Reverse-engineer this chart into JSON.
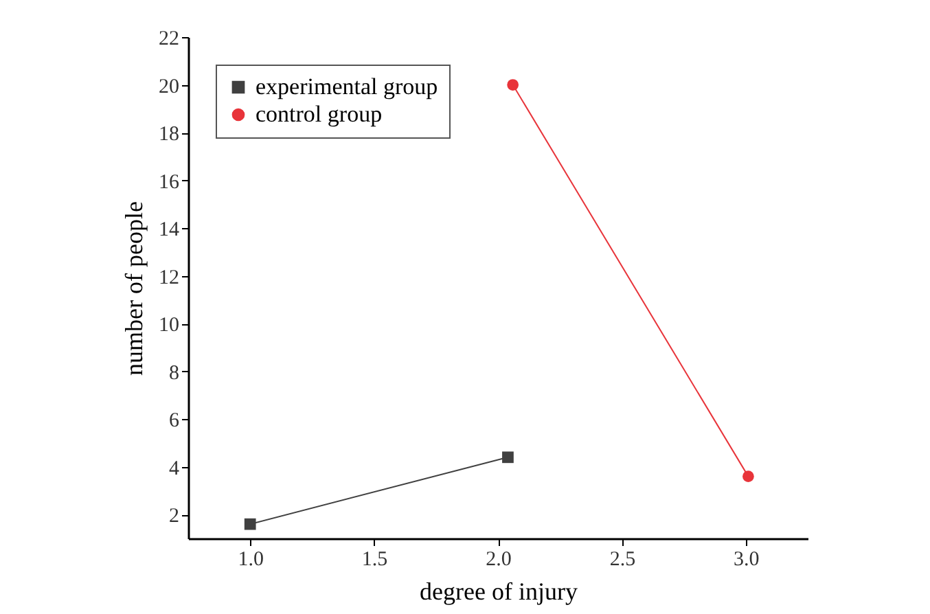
{
  "chart_data": {
    "type": "line",
    "xlabel": "degree of injury",
    "ylabel": "number of people",
    "series": [
      {
        "name": "experimental group",
        "color": "#404040",
        "marker": "square",
        "x": [
          1.0,
          2.04
        ],
        "values": [
          1.6,
          4.4
        ]
      },
      {
        "name": "control group",
        "color": "#e8343a",
        "marker": "circle",
        "x": [
          2.06,
          3.01
        ],
        "values": [
          20,
          3.6
        ]
      }
    ],
    "xlim": [
      0.75,
      3.25
    ],
    "xticks": [
      {
        "value": 1,
        "label": "1.0"
      },
      {
        "value": 1.5,
        "label": "1.5"
      },
      {
        "value": 2,
        "label": "2.0"
      },
      {
        "value": 2.5,
        "label": "2.5"
      },
      {
        "value": 3,
        "label": "3.0"
      }
    ],
    "ylim": [
      1,
      22
    ],
    "yticks": [
      2,
      4,
      6,
      8,
      10,
      12,
      14,
      16,
      18,
      20,
      22
    ],
    "legend": "top left",
    "grid": false
  }
}
